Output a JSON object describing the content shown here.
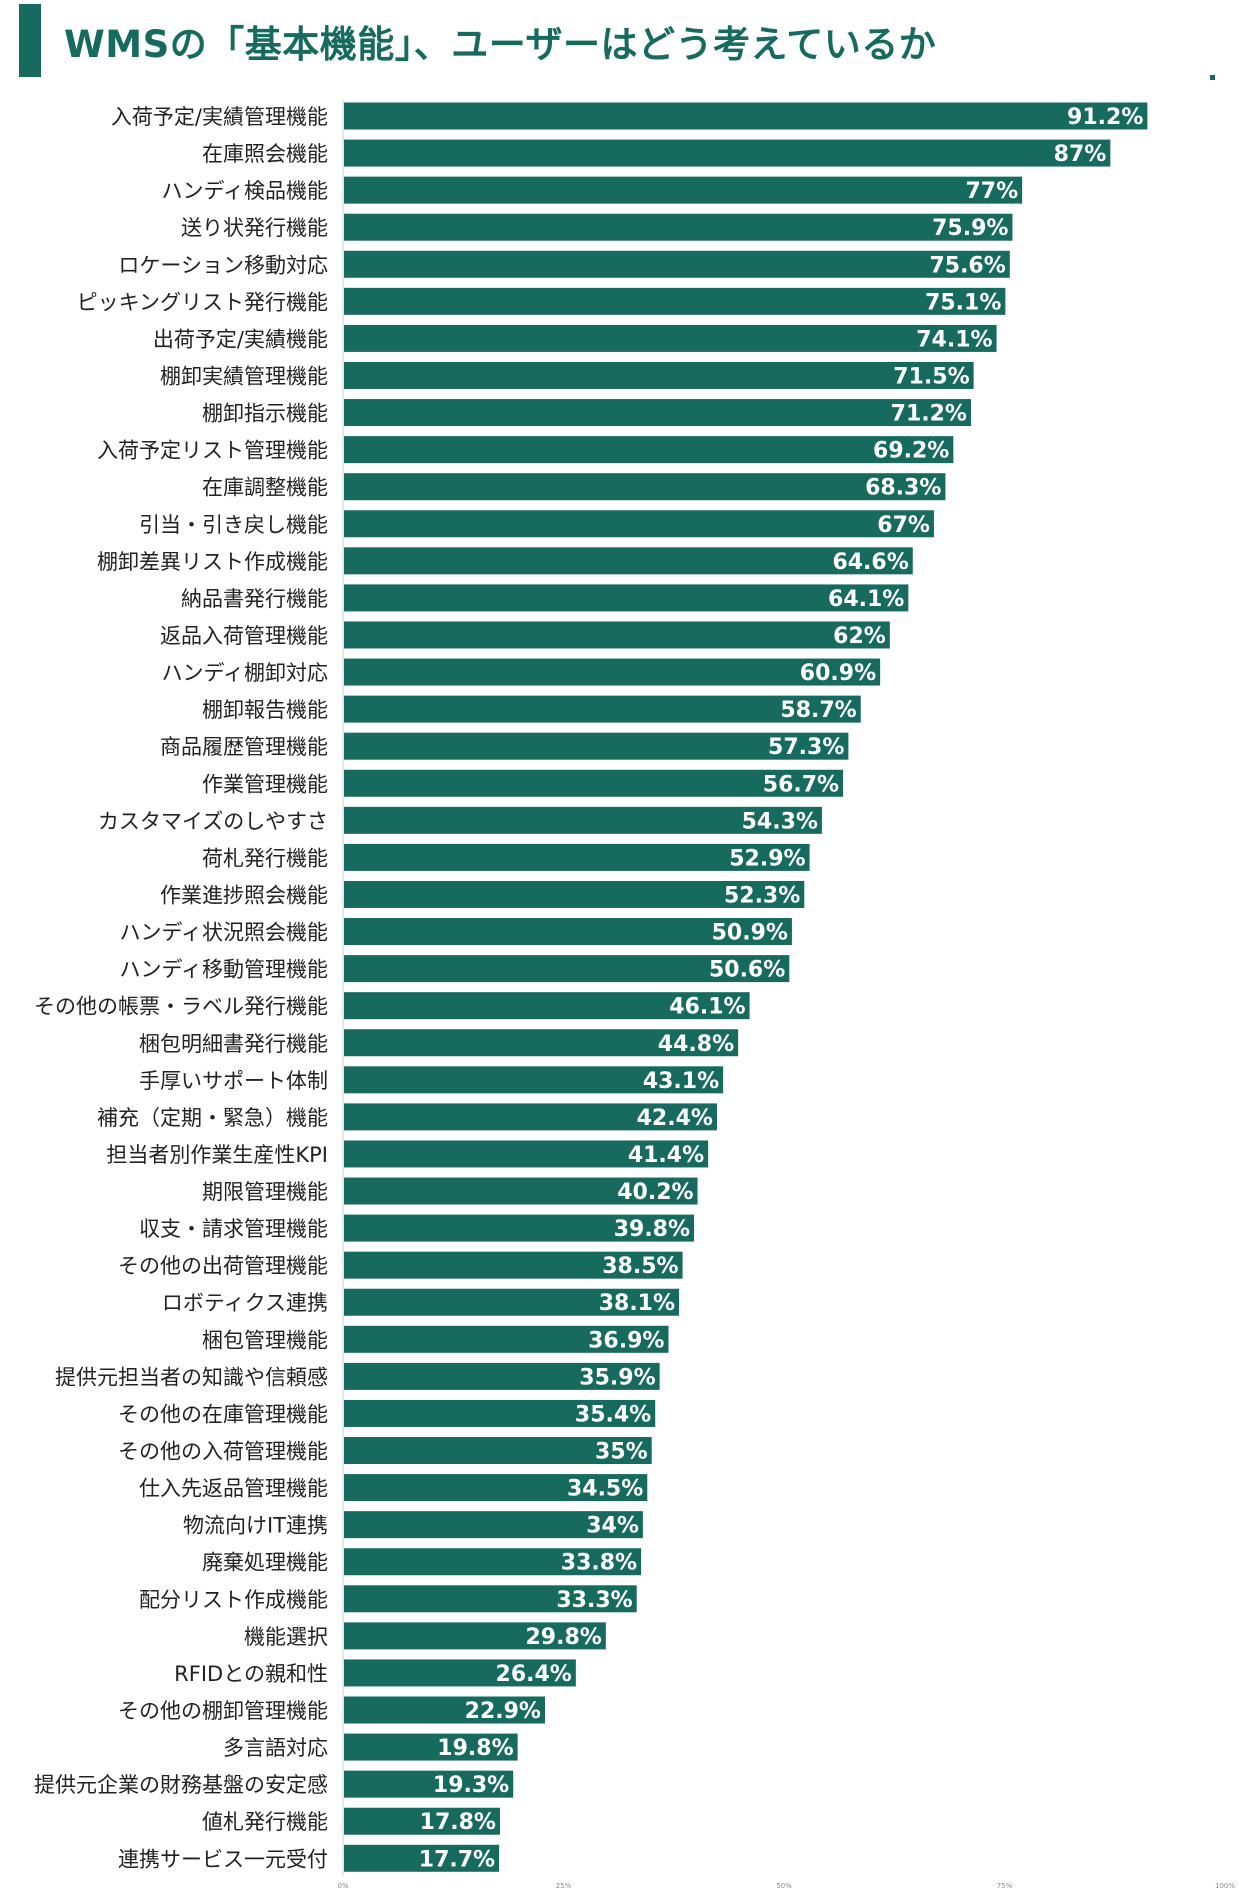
{
  "header": {
    "title": "WMSの「基本機能」、ユーザーはどう考えているか"
  },
  "colors": {
    "bar": "#166b5e",
    "title": "#166b5e",
    "value_text": "#ffffff",
    "axis": "#cccccc"
  },
  "chart_data": {
    "type": "bar",
    "orientation": "horizontal",
    "title": "WMSの「基本機能」、ユーザーはどう考えているか",
    "categories": [
      "入荷予定/実績管理機能",
      "在庫照会機能",
      "ハンディ検品機能",
      "送り状発行機能",
      "ロケーション移動対応",
      "ピッキングリスト発行機能",
      "出荷予定/実績機能",
      "棚卸実績管理機能",
      "棚卸指示機能",
      "入荷予定リスト管理機能",
      "在庫調整機能",
      "引当・引き戻し機能",
      "棚卸差異リスト作成機能",
      "納品書発行機能",
      "返品入荷管理機能",
      "ハンディ棚卸対応",
      "棚卸報告機能",
      "商品履歴管理機能",
      "作業管理機能",
      "カスタマイズのしやすさ",
      "荷札発行機能",
      "作業進捗照会機能",
      "ハンディ状況照会機能",
      "ハンディ移動管理機能",
      "その他の帳票・ラベル発行機能",
      "梱包明細書発行機能",
      "手厚いサポート体制",
      "補充（定期・緊急）機能",
      "担当者別作業生産性KPI",
      "期限管理機能",
      "収支・請求管理機能",
      "その他の出荷管理機能",
      "ロボティクス連携",
      "梱包管理機能",
      "提供元担当者の知識や信頼感",
      "その他の在庫管理機能",
      "その他の入荷管理機能",
      "仕入先返品管理機能",
      "物流向けIT連携",
      "廃棄処理機能",
      "配分リスト作成機能",
      "機能選択",
      "RFIDとの親和性",
      "その他の棚卸管理機能",
      "多言語対応",
      "提供元企業の財務基盤の安定感",
      "値札発行機能",
      "連携サービス一元受付"
    ],
    "values": [
      91.2,
      87,
      77,
      75.9,
      75.6,
      75.1,
      74.1,
      71.5,
      71.2,
      69.2,
      68.3,
      67,
      64.6,
      64.1,
      62,
      60.9,
      58.7,
      57.3,
      56.7,
      54.3,
      52.9,
      52.3,
      50.9,
      50.6,
      46.1,
      44.8,
      43.1,
      42.4,
      41.4,
      40.2,
      39.8,
      38.5,
      38.1,
      36.9,
      35.9,
      35.4,
      35,
      34.5,
      34,
      33.8,
      33.3,
      29.8,
      26.4,
      22.9,
      19.8,
      19.3,
      17.8,
      17.7
    ],
    "value_labels": [
      "91.2%",
      "87%",
      "77%",
      "75.9%",
      "75.6%",
      "75.1%",
      "74.1%",
      "71.5%",
      "71.2%",
      "69.2%",
      "68.3%",
      "67%",
      "64.6%",
      "64.1%",
      "62%",
      "60.9%",
      "58.7%",
      "57.3%",
      "56.7%",
      "54.3%",
      "52.9%",
      "52.3%",
      "50.9%",
      "50.6%",
      "46.1%",
      "44.8%",
      "43.1%",
      "42.4%",
      "41.4%",
      "40.2%",
      "39.8%",
      "38.5%",
      "38.1%",
      "36.9%",
      "35.9%",
      "35.4%",
      "35%",
      "34.5%",
      "34%",
      "33.8%",
      "33.3%",
      "29.8%",
      "26.4%",
      "22.9%",
      "19.8%",
      "19.3%",
      "17.8%",
      "17.7%"
    ],
    "xlim": [
      0,
      100
    ],
    "x_ticks": [
      "0%",
      "25%",
      "50%",
      "75%",
      "100%"
    ],
    "tick_values": [
      0,
      25,
      50,
      75,
      100
    ],
    "grid": false,
    "legend": "none"
  }
}
